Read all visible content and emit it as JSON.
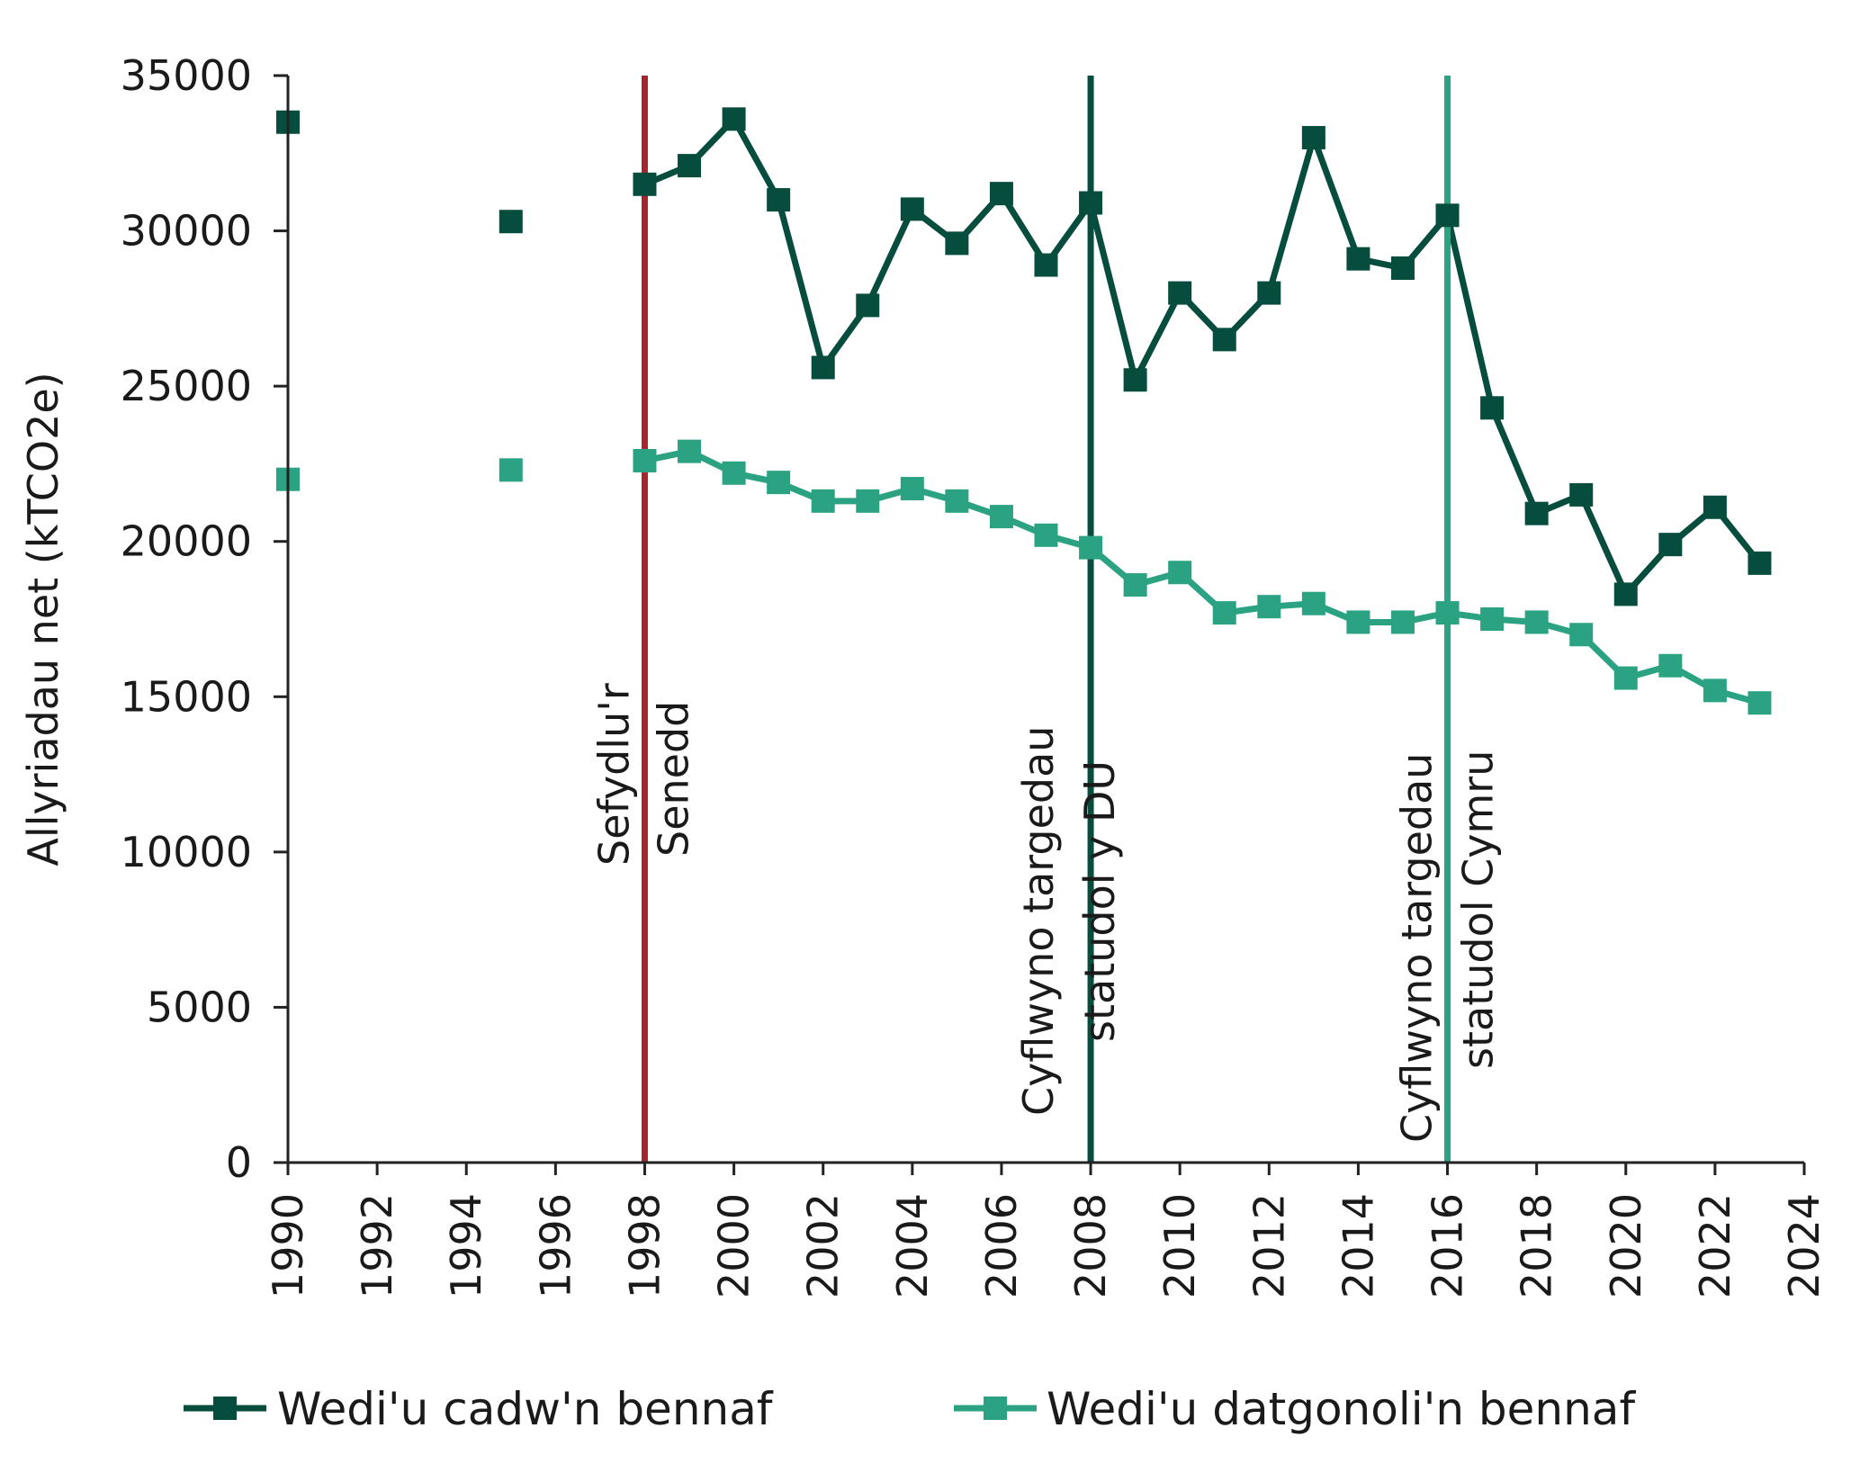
{
  "chart_data": {
    "type": "line",
    "ylabel": "Allyriadau net (kTCO2e)",
    "xlabel": "",
    "ylim": [
      0,
      35000
    ],
    "xlim": [
      1990,
      2024
    ],
    "y_ticks": [
      "0",
      "5000",
      "10000",
      "15000",
      "20000",
      "25000",
      "30000",
      "35000"
    ],
    "x_ticks": [
      "1990",
      "1992",
      "1994",
      "1996",
      "1998",
      "2000",
      "2002",
      "2004",
      "2006",
      "2008",
      "2010",
      "2012",
      "2014",
      "2016",
      "2018",
      "2020",
      "2022",
      "2024"
    ],
    "grid": false,
    "legend_position": "bottom",
    "series": [
      {
        "name": "Wedi'u cadw'n bennaf",
        "color": "#064d3e",
        "points": [
          [
            1990,
            33500
          ],
          [
            1995,
            30300
          ],
          [
            1998,
            31500
          ],
          [
            1999,
            32100
          ],
          [
            2000,
            33600
          ],
          [
            2001,
            31000
          ],
          [
            2002,
            25600
          ],
          [
            2003,
            27600
          ],
          [
            2004,
            30700
          ],
          [
            2005,
            29600
          ],
          [
            2006,
            31200
          ],
          [
            2007,
            28900
          ],
          [
            2008,
            30900
          ],
          [
            2009,
            25200
          ],
          [
            2010,
            28000
          ],
          [
            2011,
            26500
          ],
          [
            2012,
            28000
          ],
          [
            2013,
            33000
          ],
          [
            2014,
            29100
          ],
          [
            2015,
            28800
          ],
          [
            2016,
            30500
          ],
          [
            2017,
            24300
          ],
          [
            2018,
            20900
          ],
          [
            2019,
            21500
          ],
          [
            2020,
            18300
          ],
          [
            2021,
            19900
          ],
          [
            2022,
            21100
          ],
          [
            2023,
            19300
          ]
        ],
        "segments": [
          [
            1990
          ],
          [
            1995
          ],
          [
            1998,
            1999,
            2000,
            2001,
            2002,
            2003,
            2004,
            2005,
            2006,
            2007,
            2008,
            2009,
            2010,
            2011,
            2012,
            2013,
            2014,
            2015,
            2016,
            2017,
            2018,
            2019,
            2020,
            2021,
            2022,
            2023
          ]
        ]
      },
      {
        "name": "Wedi'u datgonoli'n bennaf",
        "color": "#2ba383",
        "points": [
          [
            1990,
            22000
          ],
          [
            1995,
            22300
          ],
          [
            1998,
            22600
          ],
          [
            1999,
            22900
          ],
          [
            2000,
            22200
          ],
          [
            2001,
            21900
          ],
          [
            2002,
            21300
          ],
          [
            2003,
            21300
          ],
          [
            2004,
            21700
          ],
          [
            2005,
            21300
          ],
          [
            2006,
            20800
          ],
          [
            2007,
            20200
          ],
          [
            2008,
            19800
          ],
          [
            2009,
            18600
          ],
          [
            2010,
            19000
          ],
          [
            2011,
            17700
          ],
          [
            2012,
            17900
          ],
          [
            2013,
            18000
          ],
          [
            2014,
            17400
          ],
          [
            2015,
            17400
          ],
          [
            2016,
            17700
          ],
          [
            2017,
            17500
          ],
          [
            2018,
            17400
          ],
          [
            2019,
            17000
          ],
          [
            2020,
            15600
          ],
          [
            2021,
            16000
          ],
          [
            2022,
            15200
          ],
          [
            2023,
            14800
          ]
        ],
        "segments": [
          [
            1990
          ],
          [
            1995
          ],
          [
            1998,
            1999,
            2000,
            2001,
            2002,
            2003,
            2004,
            2005,
            2006,
            2007,
            2008,
            2009,
            2010,
            2011,
            2012,
            2013,
            2014,
            2015,
            2016,
            2017,
            2018,
            2019,
            2020,
            2021,
            2022,
            2023
          ]
        ]
      }
    ],
    "annotations": [
      {
        "x": 1998,
        "color": "#a7262e",
        "lines": [
          "Sefydlu'r",
          "Senedd"
        ]
      },
      {
        "x": 2008,
        "color": "#064d3e",
        "lines": [
          "Cyflwyno targedau",
          "statudol y DU"
        ]
      },
      {
        "x": 2016,
        "color": "#2ba383",
        "lines": [
          "Cyflwyno targedau",
          "statudol Cymru"
        ]
      }
    ]
  }
}
